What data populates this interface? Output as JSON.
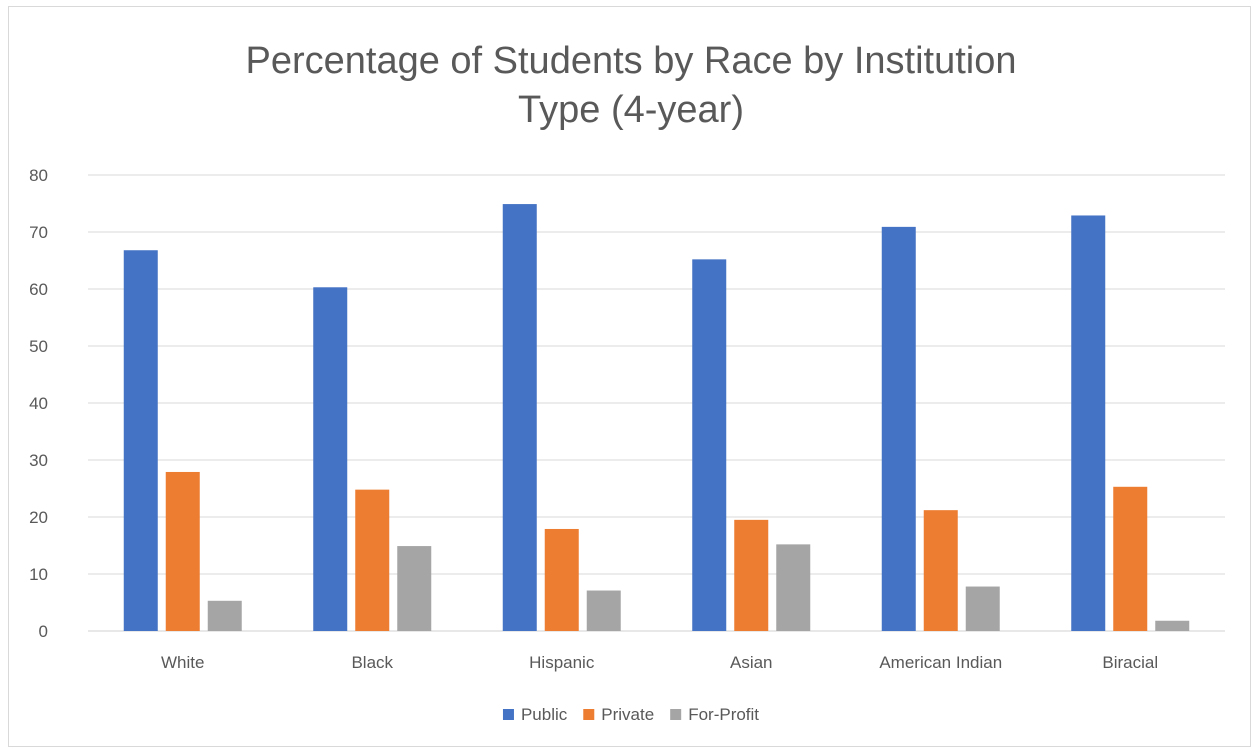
{
  "chart_data": {
    "type": "bar",
    "title_lines": [
      "Percentage of Students by Race by Institution",
      "Type (4-year)"
    ],
    "xlabel": "",
    "ylabel": "",
    "categories": [
      "White",
      "Black",
      "Hispanic",
      "Asian",
      "American Indian",
      "Biracial"
    ],
    "series": [
      {
        "name": "Public",
        "color": "#4472c4",
        "values": [
          66.8,
          60.3,
          74.9,
          65.2,
          70.9,
          72.9
        ]
      },
      {
        "name": "Private",
        "color": "#ed7d31",
        "values": [
          27.9,
          24.8,
          17.9,
          19.5,
          21.2,
          25.3
        ]
      },
      {
        "name": "For-Profit",
        "color": "#a5a5a5",
        "values": [
          5.3,
          14.9,
          7.1,
          15.2,
          7.8,
          1.8
        ]
      }
    ],
    "ylim": [
      0,
      80
    ],
    "yticks": [
      "0",
      "10",
      "20",
      "30",
      "40",
      "50",
      "60",
      "70",
      "80"
    ],
    "grid": true,
    "legend_position": "bottom"
  }
}
